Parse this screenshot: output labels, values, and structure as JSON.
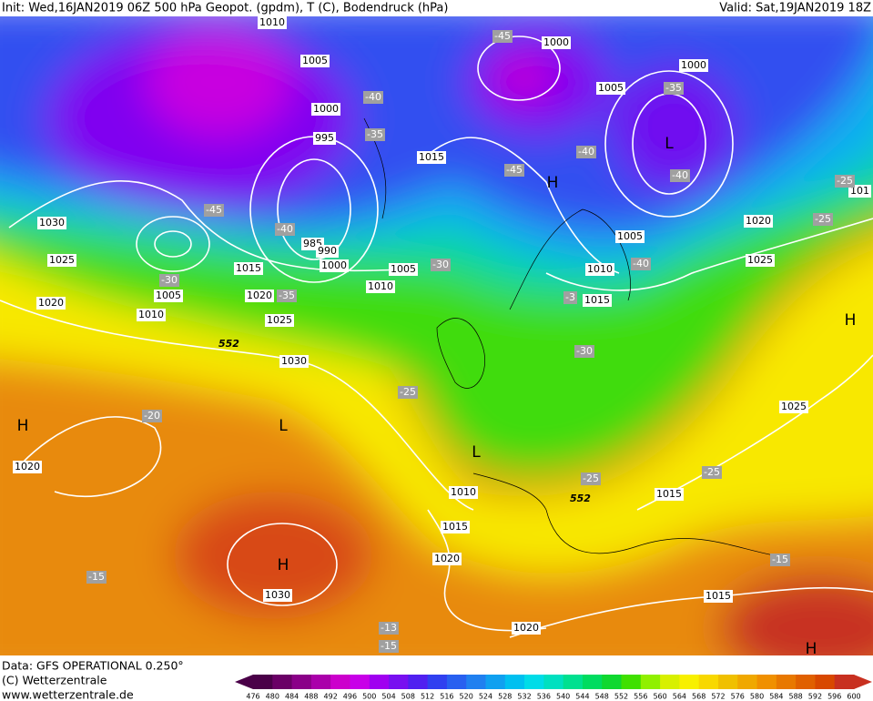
{
  "header": {
    "init": "Init: Wed,16JAN2019 06Z  500 hPa Geopot. (gpdm), T (C), Bodendruck (hPa)",
    "valid": "Valid: Sat,19JAN2019 18Z"
  },
  "footer": {
    "data": "Data: GFS OPERATIONAL 0.250°",
    "copyright": "(C) Wetterzentrale",
    "url": "www.wetterzentrale.de"
  },
  "map": {
    "isobar_labels": [
      "1010",
      "1005",
      "1000",
      "995",
      "985",
      "990",
      "1000",
      "1015",
      "1005",
      "1010",
      "1020",
      "1025",
      "1030",
      "1030",
      "1025",
      "1020",
      "1005",
      "1010",
      "1015",
      "1000",
      "1005",
      "1000",
      "1005",
      "1010",
      "1015",
      "1020",
      "1025",
      "1025",
      "1020",
      "1010",
      "1015",
      "1020",
      "1030",
      "1020",
      "1015",
      "1015",
      "101"
    ],
    "temperature_labels": [
      "-45",
      "-40",
      "-35",
      "-45",
      "-40",
      "-30",
      "-35",
      "-30",
      "-45",
      "-40",
      "-35",
      "-40",
      "-40",
      "-3",
      "-30",
      "-25",
      "-20",
      "-25",
      "-25",
      "-25",
      "-25",
      "-15",
      "-15",
      "-13",
      "-15"
    ],
    "height_labels": [
      "552",
      "552"
    ],
    "pressure_centers": [
      "H",
      "L",
      "H",
      "L",
      "L",
      "H",
      "H",
      "H"
    ]
  },
  "colorbar": {
    "ticks": [
      476,
      480,
      484,
      488,
      492,
      496,
      500,
      504,
      508,
      512,
      516,
      520,
      524,
      528,
      532,
      536,
      540,
      544,
      548,
      552,
      556,
      560,
      564,
      568,
      572,
      576,
      580,
      584,
      588,
      592,
      596,
      600
    ],
    "colors": [
      "#4a0048",
      "#6a0066",
      "#8a0088",
      "#aa00aa",
      "#cc00cc",
      "#c800e8",
      "#a000f0",
      "#7810f0",
      "#5020f0",
      "#3040f0",
      "#2860f0",
      "#2080f0",
      "#10a0f0",
      "#00c0f0",
      "#00dce8",
      "#00e0c0",
      "#00e090",
      "#00dc60",
      "#10d830",
      "#40e000",
      "#90f000",
      "#d8f000",
      "#f8f000",
      "#f8d800",
      "#f0c000",
      "#f0a800",
      "#f09000",
      "#e87800",
      "#e06000",
      "#d84800",
      "#c83020"
    ]
  }
}
